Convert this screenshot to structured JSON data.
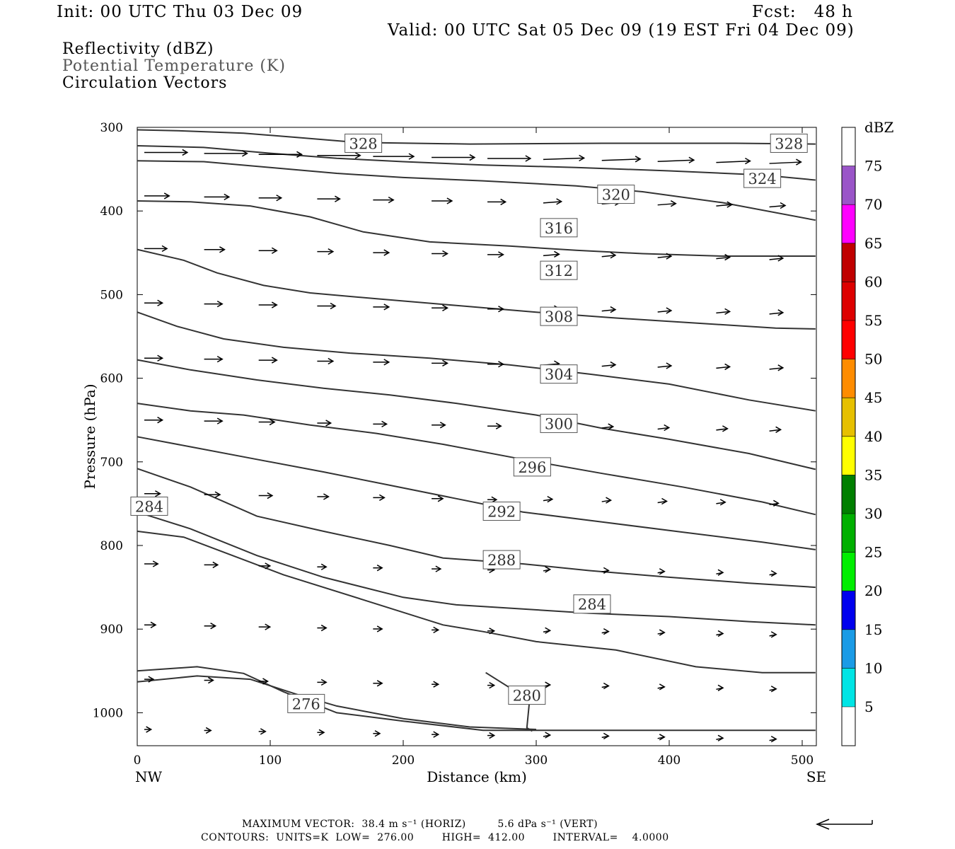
{
  "header": {
    "init": "Init: 00 UTC Thu 03 Dec 09",
    "fcst": "Fcst:   48 h",
    "valid": "Valid: 00 UTC Sat 05 Dec 09 (19 EST Fri 04 Dec 09)"
  },
  "legend": {
    "line1": "Reflectivity (dBZ)",
    "line2": "Potential Temperature (K)",
    "line3": "Circulation Vectors"
  },
  "chart_data": {
    "type": "contour-cross-section",
    "xlabel": "Distance (km)",
    "ylabel": "Pressure (hPa)",
    "xlim": [
      0,
      510
    ],
    "ylim": [
      1040,
      300
    ],
    "x_ticks": [
      0,
      100,
      200,
      300,
      400,
      500
    ],
    "y_ticks": [
      300,
      400,
      500,
      600,
      700,
      800,
      900,
      1000
    ],
    "x_end_labels": {
      "left": "NW",
      "right": "SE"
    },
    "isentropes": [
      {
        "label": "328",
        "p": [
          303,
          302,
          304,
          308,
          315,
          319,
          320,
          319,
          318,
          319,
          320
        ],
        "labels_at": [
          170,
          490
        ]
      },
      {
        "label": "324",
        "p": [
          322,
          324,
          331,
          338,
          343,
          345,
          347,
          350,
          353,
          357,
          363
        ],
        "labels_at": [
          470
        ]
      },
      {
        "label": "320",
        "p": [
          340,
          341,
          349,
          356,
          361,
          364,
          367,
          372,
          381,
          392,
          411
        ],
        "labels_at": [
          360
        ]
      },
      {
        "label": "316",
        "p": [
          388,
          389,
          395,
          413,
          432,
          442,
          446,
          447,
          451,
          453,
          454
        ],
        "labels_at": [
          317
        ]
      },
      {
        "label": "312",
        "p": [
          446,
          459,
          489,
          501,
          507,
          513,
          524,
          529,
          488,
          493,
          496
        ],
        "labels_at": [
          317
        ]
      },
      {
        "label": "308",
        "p": [
          521,
          545,
          565,
          570,
          573,
          578,
          583,
          591,
          598,
          579,
          578
        ],
        "labels_at": [
          317
        ]
      },
      {
        "label": "304",
        "p": [
          578,
          593,
          605,
          613,
          620,
          625,
          629,
          641,
          651,
          662,
          644
        ],
        "labels_at": [
          317
        ]
      },
      {
        "label": "300",
        "p": [
          630,
          637,
          646,
          654,
          665,
          677,
          686,
          700,
          710,
          722,
          759
        ],
        "labels_at": [
          317
        ]
      },
      {
        "label": "296",
        "p": [
          670,
          682,
          700,
          711,
          726,
          743,
          755,
          770,
          783,
          799,
          817
        ],
        "labels_at": [
          297
        ]
      },
      {
        "label": "292",
        "p": [
          708,
          730,
          765,
          783,
          800,
          815,
          821,
          832,
          838,
          846,
          860
        ],
        "labels_at": [
          274
        ]
      },
      {
        "label": "288",
        "p": [
          760,
          788,
          822,
          845,
          875,
          897,
          902,
          918,
          929,
          939,
          944
        ],
        "labels_at": [
          274
        ]
      },
      {
        "label": "284",
        "p": [
          783,
          812,
          838,
          869,
          896,
          940,
          950,
          962,
          975,
          1010,
          1040
        ],
        "labels_at": [
          9,
          342
        ]
      },
      {
        "label": "280",
        "p": [
          1023,
          1023,
          1023
        ],
        "labels_at": [
          293
        ]
      },
      {
        "label": "276",
        "p": [
          950,
          945,
          960,
          985,
          1000,
          1015,
          1021,
          1022,
          1023,
          1023,
          1023
        ],
        "labels_at": [
          127
        ]
      }
    ],
    "vectors_horiz_max": "38.4",
    "vectors_vert_max": "5.6"
  },
  "contour_labels": {
    "l328a": "328",
    "l328b": "328",
    "l324": "324",
    "l320": "320",
    "l316": "316",
    "l312": "312",
    "l308": "308",
    "l304": "304",
    "l300": "300",
    "l296": "296",
    "l292": "292",
    "l288": "288",
    "l284a": "284",
    "l284b": "284",
    "l280": "280",
    "l276": "276"
  },
  "colorbar": {
    "unit": "dBZ",
    "levels": [
      "75",
      "70",
      "65",
      "60",
      "55",
      "50",
      "45",
      "40",
      "35",
      "30",
      "25",
      "20",
      "15",
      "10",
      "5"
    ],
    "colors": [
      "#ffffff",
      "#9a55c8",
      "#ff00ff",
      "#c00000",
      "#dd0000",
      "#ff0000",
      "#ff8c00",
      "#e6c000",
      "#ffff00",
      "#007f00",
      "#00b000",
      "#00ee00",
      "#0000ee",
      "#1a9be6",
      "#00e5e5",
      "#ffffff"
    ]
  },
  "footer": {
    "max_vector": "MAXIMUM VECTOR:  38.4 m s⁻¹ (HORIZ)         5.6 dPa s⁻¹ (VERT)",
    "contours": "CONTOURS:  UNITS=K  LOW=  276.00        HIGH=  412.00        INTERVAL=    4.0000"
  }
}
